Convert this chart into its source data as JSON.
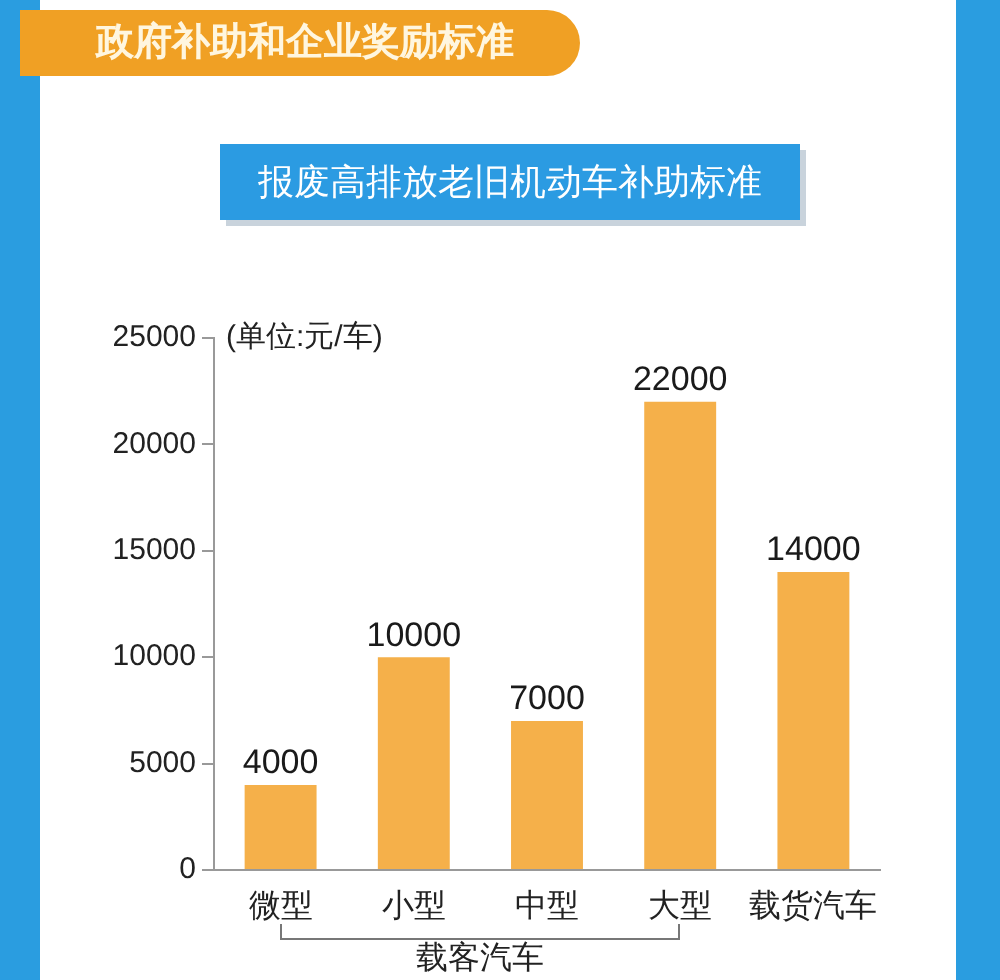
{
  "chart_data": {
    "type": "bar",
    "title": "政府补助和企业奖励标准",
    "subtitle": "报废高排放老旧机动车补助标准",
    "ylabel": "(单位:元/车)",
    "annotations": [
      "载客汽车"
    ],
    "categories": [
      "微型",
      "小型",
      "中型",
      "大型",
      "载货汽车"
    ],
    "values": [
      4000,
      10000,
      7000,
      22000,
      14000
    ],
    "color": "#f5b04a",
    "ylim": [
      0,
      25000
    ],
    "yticks": [
      0,
      5000,
      10000,
      15000,
      20000,
      25000
    ],
    "data_labels": true,
    "grid": false
  }
}
